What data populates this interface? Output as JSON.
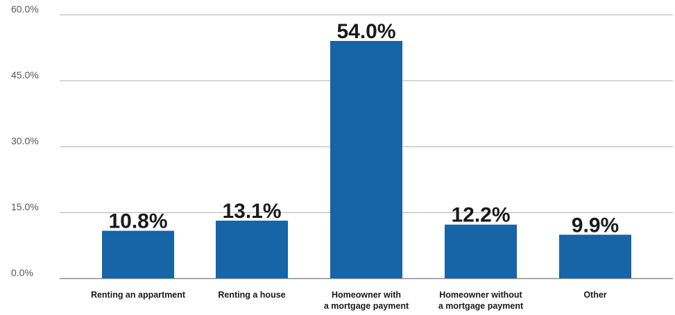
{
  "chart_data": {
    "type": "bar",
    "categories": [
      [
        "Renting an appartment"
      ],
      [
        "Renting a house"
      ],
      [
        "Homeowner with",
        "a mortgage payment"
      ],
      [
        "Homeowner without",
        "a mortgage payment"
      ],
      [
        "Other"
      ]
    ],
    "values": [
      10.8,
      13.1,
      54.0,
      12.2,
      9.9
    ],
    "data_labels": [
      "10.8%",
      "13.1%",
      "54.0%",
      "12.2%",
      "9.9%"
    ],
    "y_ticks": [
      0,
      15,
      30,
      45,
      60
    ],
    "y_tick_labels": [
      "0.0%",
      "15.0%",
      "30.0%",
      "45.0%",
      "60.0%"
    ],
    "ylim": [
      0,
      60
    ],
    "grid": true,
    "legend": "none",
    "bar_color": "#1764a6"
  }
}
